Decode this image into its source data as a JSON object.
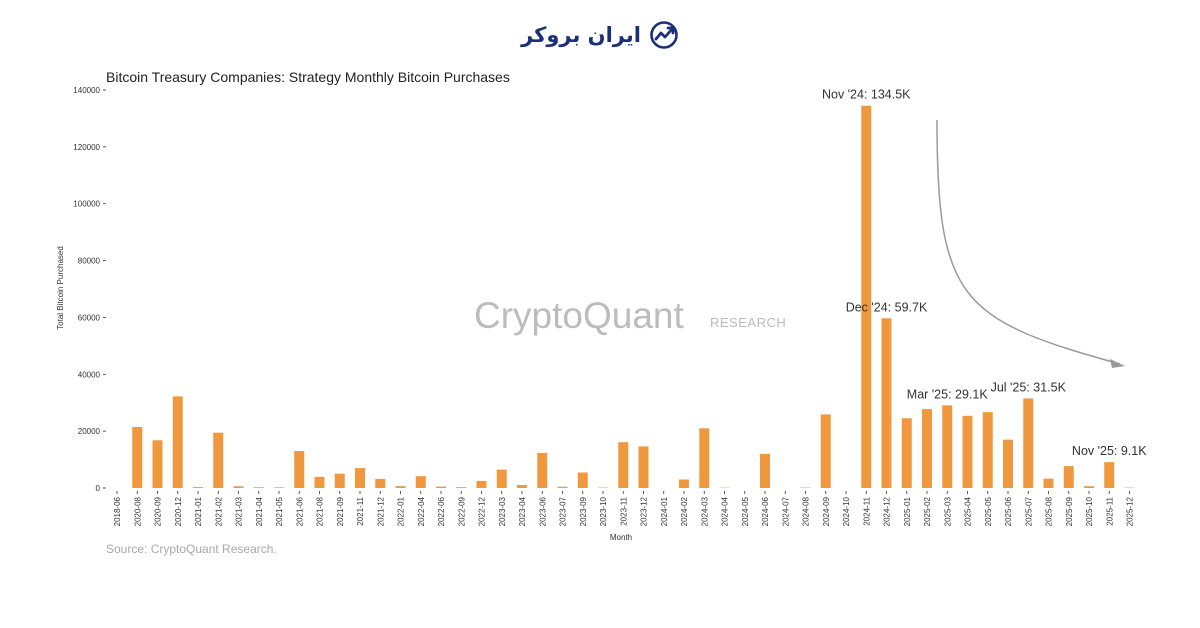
{
  "brand": {
    "name": "ایران بروکر",
    "icon": "trend-chart-icon",
    "color": "#1c2f7a"
  },
  "watermark": {
    "main": "CryptoQuant",
    "sub": "RESEARCH"
  },
  "source": "Source: CryptoQuant Research.",
  "colors": {
    "bar": "#f0983e",
    "arrow": "#9a9a9a"
  },
  "chart_data": {
    "type": "bar",
    "title": "Bitcoin Treasury Companies: Strategy Monthly Bitcoin Purchases",
    "xlabel": "Month",
    "ylabel": "Total Bitcoin Purchased",
    "ylim": [
      0,
      140000
    ],
    "yticks": [
      0,
      20000,
      40000,
      60000,
      80000,
      100000,
      120000,
      140000
    ],
    "categories": [
      "2018-06",
      "2020-08",
      "2020-09",
      "2020-12",
      "2021-01",
      "2021-02",
      "2021-03",
      "2021-04",
      "2021-05",
      "2021-06",
      "2021-08",
      "2021-09",
      "2021-11",
      "2021-12",
      "2022-01",
      "2022-04",
      "2022-06",
      "2022-09",
      "2022-12",
      "2023-03",
      "2023-04",
      "2023-06",
      "2023-07",
      "2023-09",
      "2023-10",
      "2023-11",
      "2023-12",
      "2024-01",
      "2024-02",
      "2024-03",
      "2024-04",
      "2024-05",
      "2024-06",
      "2024-07",
      "2024-08",
      "2024-09",
      "2024-10",
      "2024-11",
      "2024-12",
      "2025-01",
      "2025-02",
      "2025-03",
      "2025-04",
      "2025-05",
      "2025-06",
      "2025-07",
      "2025-08",
      "2025-09",
      "2025-10",
      "2025-11",
      "2025-12"
    ],
    "values": [
      0,
      21454,
      16796,
      32220,
      314,
      19452,
      615,
      271,
      229,
      13005,
      3907,
      5050,
      7002,
      3200,
      660,
      4167,
      480,
      301,
      2500,
      6455,
      1045,
      12333,
      467,
      5445,
      155,
      16130,
      14620,
      0,
      3000,
      21000,
      122,
      0,
      12000,
      0,
      169,
      25889,
      0,
      134480,
      59700,
      24536,
      27750,
      29100,
      25400,
      26695,
      17000,
      31500,
      3300,
      7700,
      640,
      9100,
      130
    ],
    "annotations": [
      {
        "category": "2024-11",
        "text": "Nov '24: 134.5K"
      },
      {
        "category": "2024-12",
        "text": "Dec '24: 59.7K"
      },
      {
        "category": "2025-03",
        "text": "Mar '25: 29.1K"
      },
      {
        "category": "2025-07",
        "text": "Jul '25: 31.5K"
      },
      {
        "category": "2025-11",
        "text": "Nov '25: 9.1K"
      }
    ],
    "grid": false
  }
}
